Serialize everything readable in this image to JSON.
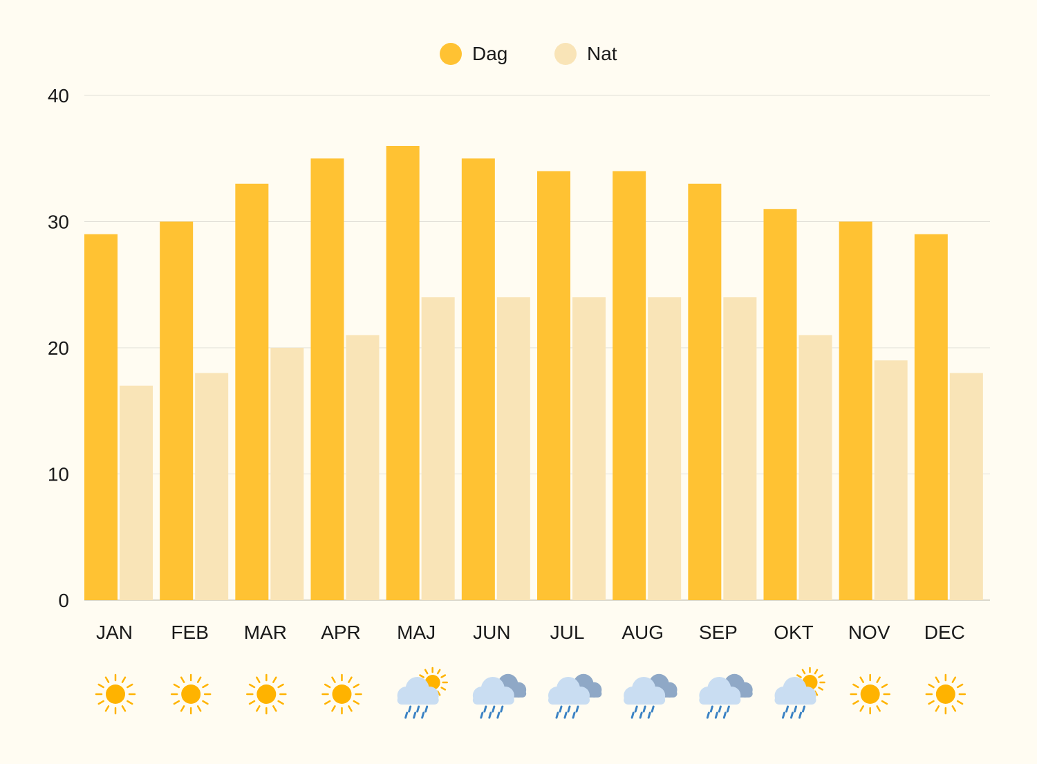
{
  "chart_data": {
    "type": "bar",
    "categories": [
      "JAN",
      "FEB",
      "MAR",
      "APR",
      "MAJ",
      "JUN",
      "JUL",
      "AUG",
      "SEP",
      "OKT",
      "NOV",
      "DEC"
    ],
    "series": [
      {
        "name": "Dag",
        "color": "#FFC233",
        "values": [
          29,
          30,
          33,
          35,
          36,
          35,
          34,
          34,
          33,
          31,
          30,
          29
        ]
      },
      {
        "name": "Nat",
        "color": "#F9E4B7",
        "values": [
          17,
          18,
          20,
          21,
          24,
          24,
          24,
          24,
          24,
          21,
          19,
          18
        ]
      }
    ],
    "ylim": [
      0,
      40
    ],
    "yticks": [
      0,
      10,
      20,
      30,
      40
    ],
    "grid": true,
    "legend_position": "top-center",
    "weather_icons": [
      "sun-icon",
      "sun-icon",
      "sun-icon",
      "sun-icon",
      "rain-sun-icon",
      "rain-cloud-icon",
      "rain-cloud-icon",
      "rain-cloud-icon",
      "rain-cloud-icon",
      "rain-sun-icon",
      "sun-icon",
      "sun-icon"
    ],
    "colors": {
      "background": "#FFFCF2",
      "grid": "#E2E0D8",
      "sun": "#FFB300",
      "sun_ray": "#FFB300",
      "cloud": "#C9DDF2",
      "cloud_dark": "#8FA8C6",
      "rain": "#3B82C4"
    }
  }
}
